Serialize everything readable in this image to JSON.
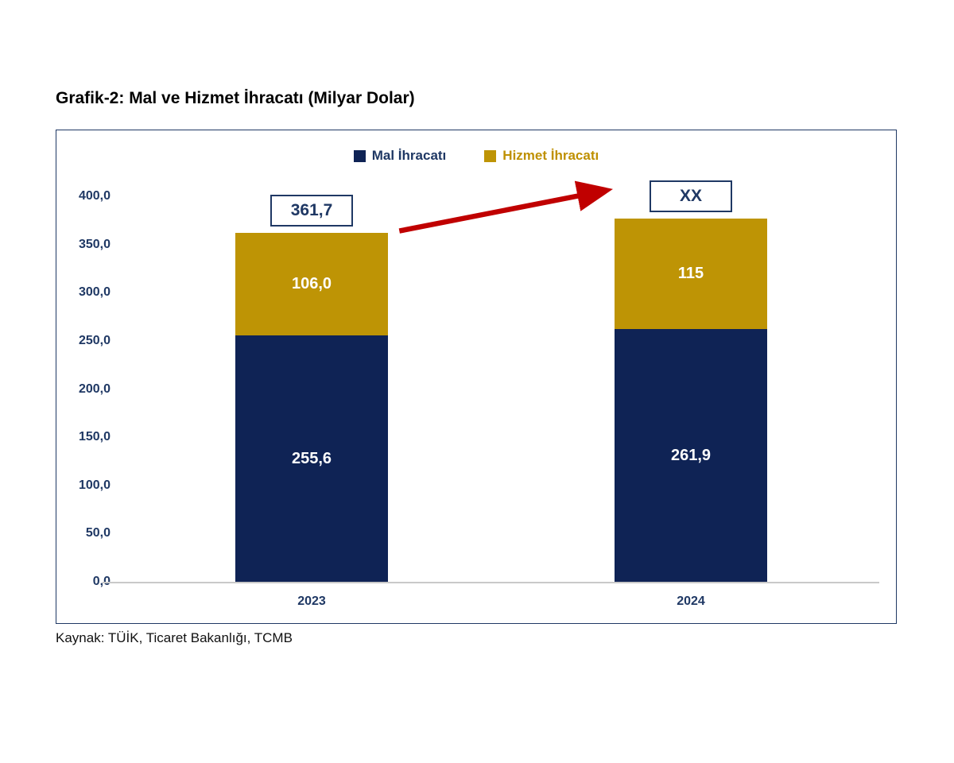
{
  "title": "Grafik-2: Mal ve Hizmet İhracatı (Milyar Dolar)",
  "source": "Kaynak: TÜİK, Ticaret Bakanlığı, TCMB",
  "colors": {
    "navy_bar": "#0F2355",
    "gold_bar": "#BE9405",
    "legend_navy_text": "#1F3864",
    "legend_gold_text": "#BF9000",
    "arrow_red": "#C00000",
    "axis_gray": "#c9c9c9",
    "frame_navy": "#1F3864"
  },
  "chart_data": {
    "type": "bar",
    "stacked": true,
    "title": "Grafik-2: Mal ve Hizmet İhracatı (Milyar Dolar)",
    "categories": [
      "2023",
      "2024"
    ],
    "series": [
      {
        "name": "Mal İhracatı",
        "color": "#0F2355",
        "values": [
          255.6,
          261.9
        ],
        "labels": [
          "255,6",
          "261,9"
        ]
      },
      {
        "name": "Hizmet İhracatı",
        "color": "#BE9405",
        "values": [
          106.0,
          115.0
        ],
        "labels": [
          "106,0",
          "115"
        ]
      }
    ],
    "totals": [
      "361,7",
      "XX"
    ],
    "y_ticks": [
      {
        "value": 400,
        "label": "400,0"
      },
      {
        "value": 350,
        "label": "350,0"
      },
      {
        "value": 300,
        "label": "300,0"
      },
      {
        "value": 250,
        "label": "250,0"
      },
      {
        "value": 200,
        "label": "200,0"
      },
      {
        "value": 150,
        "label": "150,0"
      },
      {
        "value": 100,
        "label": "100,0"
      },
      {
        "value": 50,
        "label": "50,0"
      },
      {
        "value": 0,
        "label": "0,0"
      }
    ],
    "ylim": [
      0,
      400
    ],
    "xlabel": "",
    "ylabel": "",
    "grid": false,
    "legend_position": "top-center",
    "annotation": "red arrow from 2023 total toward 2024 total box"
  }
}
